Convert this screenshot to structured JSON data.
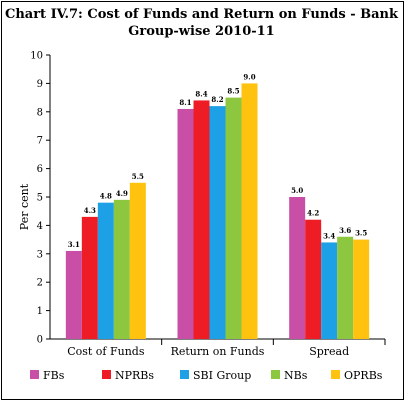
{
  "chart_data": {
    "type": "bar",
    "title_line1": "Chart IV.7: Cost of Funds and Return on Funds - Bank",
    "title_line2": "Group-wise 2010-11",
    "ylabel": "Per cent",
    "xlabel": "",
    "ylim": [
      0,
      10
    ],
    "yticks": [
      "0",
      "1",
      "2",
      "3",
      "4",
      "5",
      "6",
      "7",
      "8",
      "9",
      "10"
    ],
    "grid": false,
    "legend_position": "bottom",
    "categories": [
      "Cost of Funds",
      "Return on Funds",
      "Spread"
    ],
    "series": [
      {
        "name": "FBs",
        "color": "#c94fa6",
        "values": [
          3.1,
          8.1,
          5.0
        ],
        "labels": [
          "3.1",
          "8.1",
          "5.0"
        ]
      },
      {
        "name": "NPRBs",
        "color": "#ee1c24",
        "values": [
          4.3,
          8.4,
          4.2
        ],
        "labels": [
          "4.3",
          "8.4",
          "4.2"
        ]
      },
      {
        "name": "SBI Group",
        "color": "#1ea0e6",
        "values": [
          4.8,
          8.2,
          3.4
        ],
        "labels": [
          "4.8",
          "8.2",
          "3.4"
        ]
      },
      {
        "name": "NBs",
        "color": "#8dc63f",
        "values": [
          4.9,
          8.5,
          3.6
        ],
        "labels": [
          "4.9",
          "8.5",
          "3.6"
        ]
      },
      {
        "name": "OPRBs",
        "color": "#ffc20e",
        "values": [
          5.5,
          9.0,
          3.5
        ],
        "labels": [
          "5.5",
          "9.0",
          "3.5"
        ]
      }
    ]
  }
}
